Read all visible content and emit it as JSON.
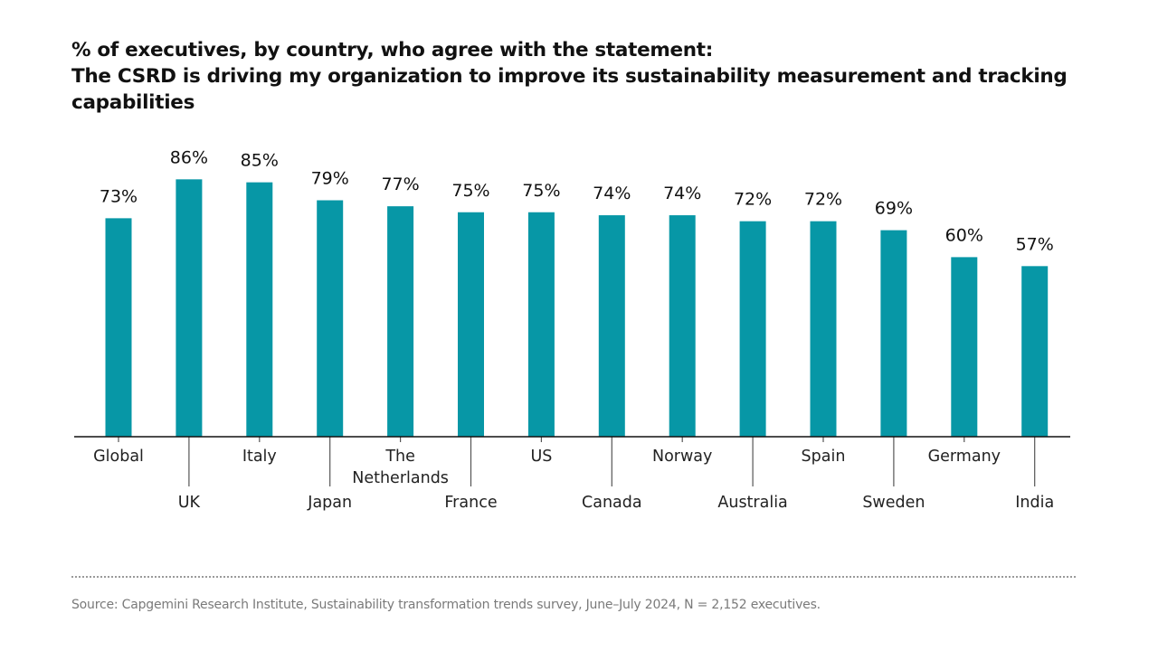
{
  "chart_data": {
    "type": "bar",
    "title_line1": "% of executives, by country, who agree with the statement:",
    "title_line2": "The CSRD is driving my organization to improve its sustainability measurement and tracking capabilities",
    "categories": [
      "Global",
      "UK",
      "Italy",
      "Japan",
      "The Netherlands",
      "France",
      "US",
      "Canada",
      "Norway",
      "Australia",
      "Spain",
      "Sweden",
      "Germany",
      "India"
    ],
    "category_lines": [
      [
        "Global"
      ],
      [
        "UK"
      ],
      [
        "Italy"
      ],
      [
        "Japan"
      ],
      [
        "The",
        "Netherlands"
      ],
      [
        "France"
      ],
      [
        "US"
      ],
      [
        "Canada"
      ],
      [
        "Norway"
      ],
      [
        "Australia"
      ],
      [
        "Spain"
      ],
      [
        "Sweden"
      ],
      [
        "Germany"
      ],
      [
        "India"
      ]
    ],
    "values": [
      73,
      86,
      85,
      79,
      77,
      75,
      75,
      74,
      74,
      72,
      72,
      69,
      60,
      57
    ],
    "value_labels": [
      "73%",
      "86%",
      "85%",
      "79%",
      "77%",
      "75%",
      "75%",
      "74%",
      "74%",
      "72%",
      "72%",
      "69%",
      "60%",
      "57%"
    ],
    "xlabel": "",
    "ylabel": "",
    "ylim": [
      0,
      100
    ],
    "grid": false,
    "legend": "none",
    "bar_color": "#0797a6"
  },
  "source": "Source: Capgemini Research Institute, Sustainability transformation trends survey, June–July 2024, N = 2,152 executives."
}
